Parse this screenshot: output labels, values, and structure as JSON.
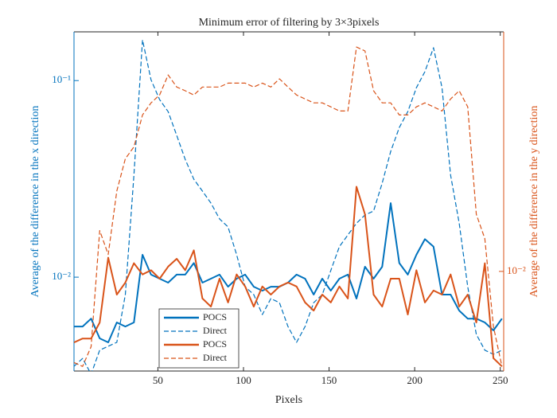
{
  "chart_data": {
    "type": "line",
    "title": "Minimum error of filtering by 3×3pixels",
    "xlabel": "Pixels",
    "ylabel": "Average of the difference in the x direction",
    "y2label": "Average of the difference in the y direction",
    "yscale": "log",
    "y2scale": "log",
    "legend": "lower left",
    "grid": false,
    "xlim": [
      1,
      252
    ],
    "xticks": [
      50,
      100,
      150,
      200,
      250
    ],
    "ylim": [
      0.00333,
      0.177
    ],
    "yticks": [
      {
        "value": 0.01,
        "label": "10⁻²"
      },
      {
        "value": 0.1,
        "label": "10⁻¹"
      }
    ],
    "y2lim": [
      0.0044,
      0.072
    ],
    "y2ticks": [
      {
        "value": 0.01,
        "label": "10⁻²"
      }
    ],
    "y_color": "#0072BD",
    "y2_color": "#D95319",
    "x": [
      1,
      6,
      11,
      16,
      21,
      26,
      31,
      36,
      41,
      46,
      51,
      56,
      61,
      66,
      71,
      76,
      81,
      86,
      91,
      96,
      101,
      106,
      111,
      116,
      121,
      126,
      131,
      136,
      141,
      146,
      151,
      156,
      161,
      166,
      171,
      176,
      181,
      186,
      191,
      196,
      201,
      206,
      211,
      216,
      221,
      226,
      231,
      236,
      241,
      246,
      251
    ],
    "series": [
      {
        "name": "POCS",
        "color": "#0072BD",
        "linestyle": "solid",
        "axis": "y",
        "values": [
          0.00561,
          0.00561,
          0.00615,
          0.00488,
          0.00466,
          0.00588,
          0.00561,
          0.00588,
          0.013,
          0.0103,
          0.00982,
          0.00938,
          0.0103,
          0.0103,
          0.0118,
          0.00938,
          0.00982,
          0.0103,
          0.00894,
          0.00982,
          0.0103,
          0.00894,
          0.00853,
          0.00894,
          0.00894,
          0.00938,
          0.0103,
          0.00982,
          0.00815,
          0.00982,
          0.00853,
          0.00982,
          0.0103,
          0.00778,
          0.0113,
          0.00982,
          0.0113,
          0.0238,
          0.0118,
          0.0103,
          0.013,
          0.0156,
          0.0143,
          0.00815,
          0.00815,
          0.00676,
          0.00615,
          0.00615,
          0.00588,
          0.00536,
          0.00615
        ]
      },
      {
        "name": "Direct",
        "color": "#0072BD",
        "linestyle": "dashed",
        "axis": "y",
        "values": [
          0.00352,
          0.00386,
          0.00321,
          0.00425,
          0.00445,
          0.00466,
          0.00815,
          0.033,
          0.161,
          0.101,
          0.08,
          0.0695,
          0.0526,
          0.0397,
          0.0315,
          0.0274,
          0.0238,
          0.0198,
          0.018,
          0.013,
          0.00894,
          0.00815,
          0.00645,
          0.00778,
          0.00741,
          0.00561,
          0.00466,
          0.00561,
          0.00741,
          0.00815,
          0.0108,
          0.0143,
          0.0164,
          0.0188,
          0.0207,
          0.0217,
          0.0301,
          0.0436,
          0.0577,
          0.0695,
          0.092,
          0.111,
          0.147,
          0.092,
          0.033,
          0.0188,
          0.00894,
          0.00512,
          0.00425,
          0.00405,
          0.00425
        ]
      },
      {
        "name": "POCS",
        "color": "#D95319",
        "linestyle": "solid",
        "axis": "y2",
        "values": [
          0.00557,
          0.00575,
          0.00575,
          0.00656,
          0.0112,
          0.00826,
          0.00912,
          0.0107,
          0.00975,
          0.0101,
          0.00942,
          0.0104,
          0.0111,
          0.0101,
          0.0119,
          0.008,
          0.00748,
          0.00942,
          0.00774,
          0.00975,
          0.00883,
          0.00748,
          0.00883,
          0.00826,
          0.00883,
          0.00912,
          0.00883,
          0.00774,
          0.00724,
          0.00826,
          0.00774,
          0.00883,
          0.008,
          0.0201,
          0.016,
          0.00826,
          0.00748,
          0.00942,
          0.00942,
          0.00701,
          0.0101,
          0.00774,
          0.00854,
          0.00826,
          0.00975,
          0.00748,
          0.00826,
          0.00656,
          0.0107,
          0.00489,
          0.00457
        ]
      },
      {
        "name": "Direct",
        "color": "#D95319",
        "linestyle": "dashed",
        "axis": "y2",
        "values": [
          0.00472,
          0.00457,
          0.00538,
          0.014,
          0.0115,
          0.0194,
          0.0253,
          0.0279,
          0.0363,
          0.0401,
          0.0428,
          0.0505,
          0.0457,
          0.0443,
          0.0428,
          0.0457,
          0.0457,
          0.0457,
          0.0472,
          0.0472,
          0.0472,
          0.0457,
          0.0472,
          0.0457,
          0.0489,
          0.0457,
          0.0428,
          0.0414,
          0.0401,
          0.0401,
          0.0388,
          0.0375,
          0.0375,
          0.0635,
          0.0615,
          0.0443,
          0.0401,
          0.0401,
          0.0363,
          0.0363,
          0.0388,
          0.0401,
          0.0388,
          0.0375,
          0.0414,
          0.0443,
          0.0388,
          0.016,
          0.0131,
          0.00635,
          0.00457
        ]
      }
    ]
  }
}
